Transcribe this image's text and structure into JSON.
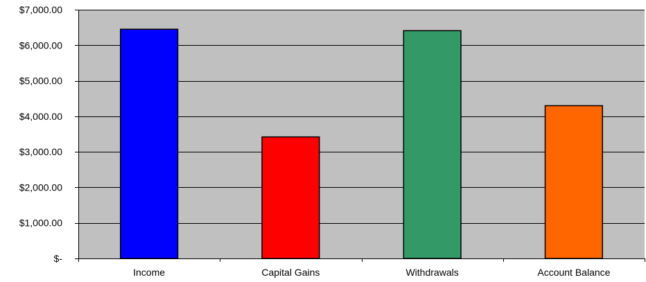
{
  "chart_data": {
    "type": "bar",
    "title": "",
    "xlabel": "",
    "ylabel": "",
    "categories": [
      "Income",
      "Capital Gains",
      "Withdrawals",
      "Account Balance"
    ],
    "values": [
      6450,
      3420,
      6410,
      4300
    ],
    "bar_colors": [
      "#0000ff",
      "#ff0000",
      "#339966",
      "#ff6600"
    ],
    "ylim": [
      0,
      7000
    ],
    "yticks": [
      0,
      1000,
      2000,
      3000,
      4000,
      5000,
      6000,
      7000
    ],
    "ytick_labels": [
      "$-",
      "$1,000.00",
      "$2,000.00",
      "$3,000.00",
      "$4,000.00",
      "$5,000.00",
      "$6,000.00",
      "$7,000.00"
    ],
    "grid": true,
    "legend": "none",
    "plot_background": "#c0c0c0",
    "bar_outline": "#000000"
  }
}
